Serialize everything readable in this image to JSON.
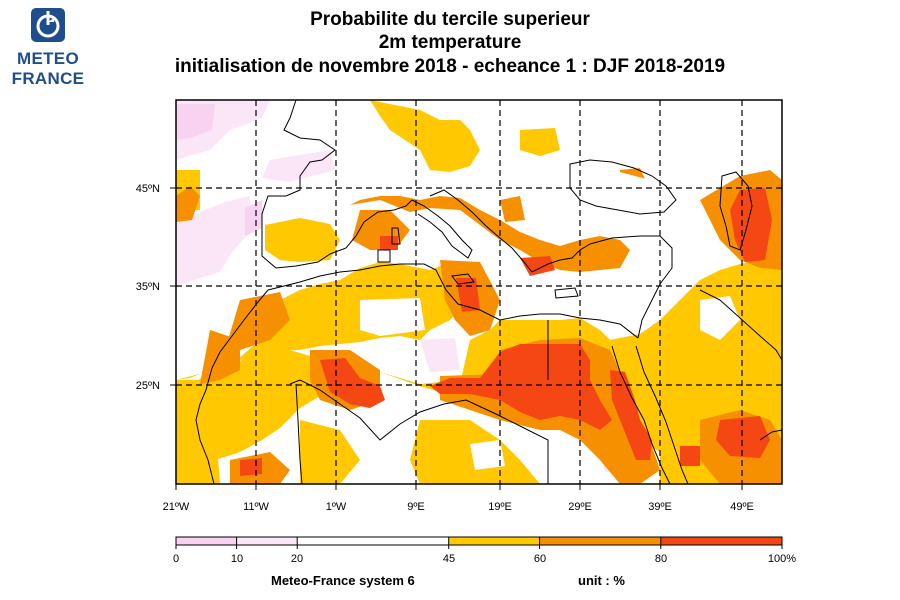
{
  "logo": {
    "line1": "METEO",
    "line2": "FRANCE",
    "color": "#1f4e8c",
    "icon": "meteo-france-logo-icon"
  },
  "title": {
    "line1": "Probabilite du tercile superieur",
    "line2": "2m temperature",
    "line3": "initialisation de novembre 2018  -  echeance 1 : DJF 2018-2019"
  },
  "map": {
    "lon_range": [
      -21,
      55
    ],
    "lat_range": [
      14,
      53
    ],
    "lat_labels": [
      "45ºN",
      "35ºN",
      "25ºN"
    ],
    "lon_labels": [
      "21ºW",
      "11ºW",
      "1ºW",
      "9ºE",
      "19ºE",
      "29ºE",
      "39ºE",
      "49ºE"
    ],
    "grid_lats": [
      45,
      35,
      25
    ],
    "grid_lons": [
      -11,
      -1,
      9,
      19,
      29,
      39,
      49
    ]
  },
  "colorbar": {
    "tick_labels": [
      "0",
      "10",
      "20",
      "45",
      "60",
      "80",
      "100%"
    ],
    "bins": [
      {
        "from": 0,
        "to": 10,
        "color": "#f7d2f1"
      },
      {
        "from": 10,
        "to": 20,
        "color": "#fbe6f8"
      },
      {
        "from": 20,
        "to": 45,
        "color": "#ffffff"
      },
      {
        "from": 45,
        "to": 60,
        "color": "#ffc800"
      },
      {
        "from": 60,
        "to": 80,
        "color": "#f79000"
      },
      {
        "from": 80,
        "to": 100,
        "color": "#f54714"
      }
    ]
  },
  "footer": {
    "system": "Meteo-France system 6",
    "unit": "unit : %"
  }
}
